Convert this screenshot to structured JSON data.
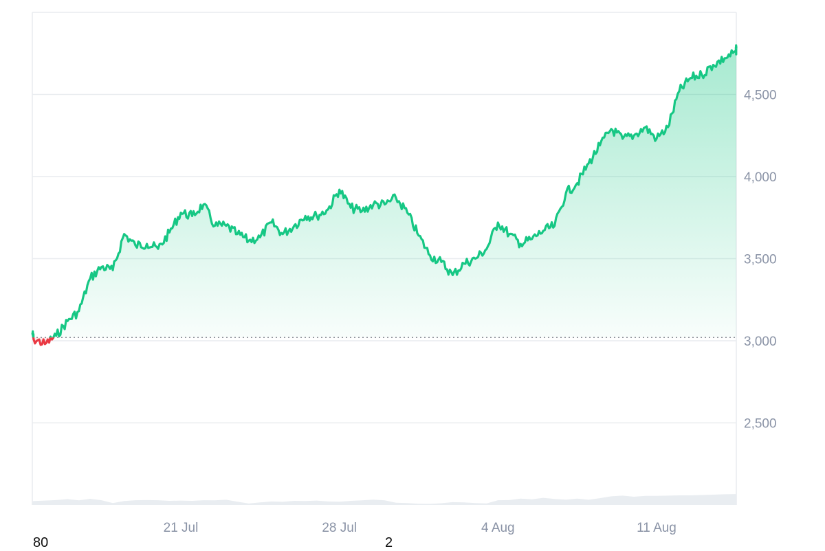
{
  "chart_data": {
    "type": "area",
    "title": "",
    "xlabel": "",
    "ylabel": "",
    "x_ticks": [
      "21 Jul",
      "28 Jul",
      "4 Aug",
      "11 Aug"
    ],
    "y_ticks": [
      2500,
      3000,
      3500,
      4000,
      4500
    ],
    "y_tick_labels": [
      "2,500",
      "3,000",
      "3,500",
      "4,000",
      "4,500"
    ],
    "ylim": [
      2000,
      5000
    ],
    "baseline": 3020,
    "grid": true,
    "legend": "none",
    "x": [
      "14 Jul",
      "14.5 Jul",
      "15 Jul",
      "15.5 Jul",
      "16 Jul",
      "16.5 Jul",
      "17 Jul",
      "17.5 Jul",
      "18 Jul",
      "18.5 Jul",
      "19 Jul",
      "19.5 Jul",
      "20 Jul",
      "20.5 Jul",
      "21 Jul",
      "21.5 Jul",
      "22 Jul",
      "22.5 Jul",
      "23 Jul",
      "23.5 Jul",
      "24 Jul",
      "24.5 Jul",
      "25 Jul",
      "25.5 Jul",
      "26 Jul",
      "26.5 Jul",
      "27 Jul",
      "27.5 Jul",
      "28 Jul",
      "28.5 Jul",
      "29 Jul",
      "29.5 Jul",
      "30 Jul",
      "30.5 Jul",
      "31 Jul",
      "31.5 Jul",
      "1 Aug",
      "1.5 Aug",
      "2 Aug",
      "2.5 Aug",
      "3 Aug",
      "3.5 Aug",
      "4 Aug",
      "4.5 Aug",
      "5 Aug",
      "5.5 Aug",
      "6 Aug",
      "6.5 Aug",
      "7 Aug",
      "7.5 Aug",
      "8 Aug",
      "8.5 Aug",
      "9 Aug",
      "9.5 Aug",
      "10 Aug",
      "10.5 Aug",
      "11 Aug",
      "11.5 Aug",
      "12 Aug",
      "12.5 Aug",
      "13 Aug",
      "13.5 Aug",
      "14 Aug",
      "14.5 Aug",
      "14.8 Aug"
    ],
    "series": [
      {
        "values": [
          3050,
          3010,
          2980,
          3030,
          3120,
          3180,
          3380,
          3450,
          3430,
          3650,
          3580,
          3590,
          3560,
          3660,
          3780,
          3760,
          3830,
          3700,
          3700,
          3650,
          3610,
          3630,
          3720,
          3650,
          3700,
          3760,
          3760,
          3800,
          3920,
          3810,
          3790,
          3830,
          3830,
          3870,
          3780,
          3640,
          3520,
          3480,
          3400,
          3470,
          3500,
          3560,
          3720,
          3650,
          3590,
          3620,
          3670,
          3700,
          3900,
          3960,
          4080,
          4190,
          4290,
          4230,
          4250,
          4300,
          4230,
          4300,
          4520,
          4600,
          4620,
          4680,
          4720,
          4760,
          4780
        ]
      },
      {
        "name_hint": "",
        "values": [
          0.23,
          0.25,
          0.28,
          0.31,
          0.37,
          0.29,
          0.39,
          0.3,
          0.12,
          0.25,
          0.3,
          0.31,
          0.3,
          0.26,
          0.28,
          0.26,
          0.3,
          0.29,
          0.33,
          0.21,
          0.09,
          0.16,
          0.22,
          0.2,
          0.26,
          0.25,
          0.28,
          0.22,
          0.21,
          0.26,
          0.29,
          0.34,
          0.29,
          0.14,
          0.12,
          0.08,
          0.07,
          0.11,
          0.18,
          0.16,
          0.12,
          0.1,
          0.3,
          0.31,
          0.4,
          0.36,
          0.45,
          0.38,
          0.34,
          0.4,
          0.33,
          0.43,
          0.55,
          0.59,
          0.52,
          0.58,
          0.58,
          0.59,
          0.61,
          0.61,
          0.63,
          0.65,
          0.68,
          0.69,
          0.7
        ]
      }
    ]
  },
  "corner_left": "80",
  "corner_mid": "2",
  "colors": {
    "up": "#16c784",
    "down": "#ea3943",
    "grid": "#e9ecef",
    "volume": "#e9edf1",
    "tick": "#8a93a6"
  }
}
